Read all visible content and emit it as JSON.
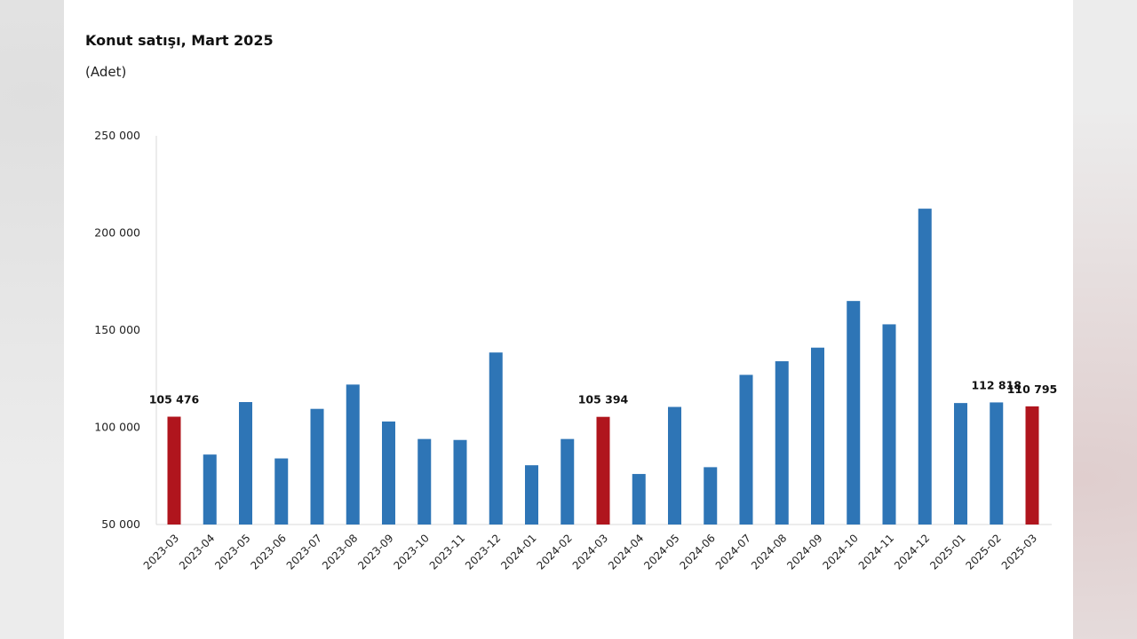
{
  "chart_data": {
    "type": "bar",
    "title": "Konut satışı, Mart 2025",
    "subtitle": "(Adet)",
    "xlabel": "",
    "ylabel": "",
    "ylim": [
      50000,
      250000
    ],
    "yticks": [
      50000,
      100000,
      150000,
      200000,
      250000
    ],
    "ytick_labels": [
      "50 000",
      "100 000",
      "150 000",
      "200 000",
      "250 000"
    ],
    "grid": false,
    "legend": "none",
    "categories": [
      "2023-03",
      "2023-04",
      "2023-05",
      "2023-06",
      "2023-07",
      "2023-08",
      "2023-09",
      "2023-10",
      "2023-11",
      "2023-12",
      "2024-01",
      "2024-02",
      "2024-03",
      "2024-04",
      "2024-05",
      "2024-06",
      "2024-07",
      "2024-08",
      "2024-09",
      "2024-10",
      "2024-11",
      "2024-12",
      "2025-01",
      "2025-02",
      "2025-03"
    ],
    "values": [
      105476,
      86000,
      113000,
      84000,
      109500,
      122000,
      103000,
      94000,
      93500,
      138500,
      80500,
      94000,
      105394,
      76000,
      110500,
      79500,
      127000,
      134000,
      141000,
      165000,
      153000,
      212500,
      112500,
      112818,
      110795
    ],
    "highlight_indices": [
      0,
      12,
      24
    ],
    "data_labels": [
      {
        "index": 0,
        "text": "105 476"
      },
      {
        "index": 12,
        "text": "105 394"
      },
      {
        "index": 23,
        "text": "112 818"
      },
      {
        "index": 24,
        "text": "110 795"
      }
    ],
    "colors": {
      "bar": "#2e75b6",
      "highlight": "#b0151d",
      "axis": "#d9d9d9"
    }
  }
}
